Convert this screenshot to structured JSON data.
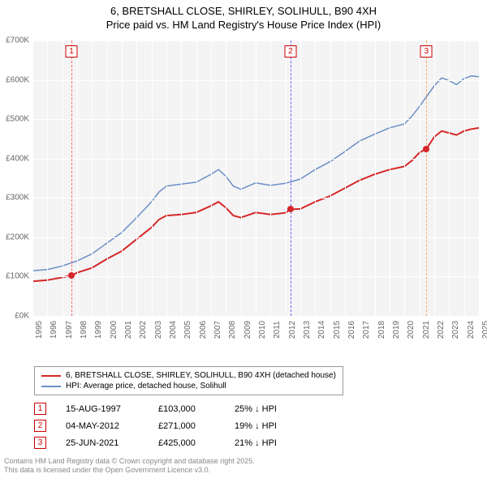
{
  "title_line1": "6, BRETSHALL CLOSE, SHIRLEY, SOLIHULL, B90 4XH",
  "title_line2": "Price paid vs. HM Land Registry's House Price Index (HPI)",
  "chart": {
    "type": "line",
    "background_color": "#f4f4f4",
    "grid_color": "#ffffff",
    "ymin": 0,
    "ymax": 700000,
    "ytick_step": 100000,
    "yticks": [
      "£0K",
      "£100K",
      "£200K",
      "£300K",
      "£400K",
      "£500K",
      "£600K",
      "£700K"
    ],
    "xmin": 1995,
    "xmax": 2025,
    "xticks": [
      1995,
      1996,
      1997,
      1998,
      1999,
      2000,
      2001,
      2002,
      2003,
      2004,
      2005,
      2006,
      2007,
      2008,
      2009,
      2010,
      2011,
      2012,
      2013,
      2014,
      2015,
      2016,
      2017,
      2018,
      2019,
      2020,
      2021,
      2022,
      2023,
      2024,
      2025
    ],
    "series": [
      {
        "name": "price_paid",
        "label": "6, BRETSHALL CLOSE, SHIRLEY, SOLIHULL, B90 4XH (detached house)",
        "color": "#d62728",
        "width": 2,
        "points": [
          [
            1995,
            88000
          ],
          [
            1996,
            91000
          ],
          [
            1997,
            98000
          ],
          [
            1997.62,
            103000
          ],
          [
            1998,
            110000
          ],
          [
            1999,
            122000
          ],
          [
            2000,
            145000
          ],
          [
            2001,
            165000
          ],
          [
            2002,
            195000
          ],
          [
            2003,
            225000
          ],
          [
            2003.5,
            245000
          ],
          [
            2004,
            255000
          ],
          [
            2005,
            258000
          ],
          [
            2006,
            263000
          ],
          [
            2007,
            280000
          ],
          [
            2007.5,
            290000
          ],
          [
            2008,
            275000
          ],
          [
            2008.5,
            255000
          ],
          [
            2009,
            250000
          ],
          [
            2010,
            263000
          ],
          [
            2011,
            258000
          ],
          [
            2012,
            262000
          ],
          [
            2012.34,
            271000
          ],
          [
            2013,
            272000
          ],
          [
            2014,
            290000
          ],
          [
            2015,
            305000
          ],
          [
            2016,
            325000
          ],
          [
            2017,
            345000
          ],
          [
            2018,
            360000
          ],
          [
            2019,
            372000
          ],
          [
            2020,
            380000
          ],
          [
            2020.5,
            395000
          ],
          [
            2021,
            415000
          ],
          [
            2021.48,
            425000
          ],
          [
            2022,
            455000
          ],
          [
            2022.5,
            470000
          ],
          [
            2023,
            465000
          ],
          [
            2023.5,
            460000
          ],
          [
            2024,
            470000
          ],
          [
            2024.5,
            475000
          ],
          [
            2025,
            478000
          ]
        ]
      },
      {
        "name": "hpi",
        "label": "HPI: Average price, detached house, Solihull",
        "color": "#6a8fc7",
        "width": 1.5,
        "points": [
          [
            1995,
            115000
          ],
          [
            1996,
            118000
          ],
          [
            1997,
            127000
          ],
          [
            1998,
            140000
          ],
          [
            1999,
            158000
          ],
          [
            2000,
            185000
          ],
          [
            2001,
            212000
          ],
          [
            2002,
            250000
          ],
          [
            2003,
            290000
          ],
          [
            2003.5,
            315000
          ],
          [
            2004,
            330000
          ],
          [
            2005,
            335000
          ],
          [
            2006,
            340000
          ],
          [
            2007,
            360000
          ],
          [
            2007.5,
            372000
          ],
          [
            2008,
            355000
          ],
          [
            2008.5,
            330000
          ],
          [
            2009,
            322000
          ],
          [
            2010,
            338000
          ],
          [
            2011,
            332000
          ],
          [
            2012,
            337000
          ],
          [
            2013,
            348000
          ],
          [
            2014,
            372000
          ],
          [
            2015,
            392000
          ],
          [
            2016,
            418000
          ],
          [
            2017,
            445000
          ],
          [
            2018,
            462000
          ],
          [
            2019,
            478000
          ],
          [
            2020,
            488000
          ],
          [
            2020.5,
            508000
          ],
          [
            2021,
            532000
          ],
          [
            2022,
            585000
          ],
          [
            2022.5,
            605000
          ],
          [
            2023,
            598000
          ],
          [
            2023.5,
            588000
          ],
          [
            2024,
            603000
          ],
          [
            2024.5,
            610000
          ],
          [
            2025,
            608000
          ]
        ]
      }
    ],
    "markers": [
      {
        "n": "1",
        "x": 1997.62,
        "y": 103000,
        "color": "#ff6666"
      },
      {
        "n": "2",
        "x": 2012.34,
        "y": 271000,
        "color": "#6666ff"
      },
      {
        "n": "3",
        "x": 2021.48,
        "y": 425000,
        "color": "#ffaa66"
      }
    ]
  },
  "legend": {
    "items": [
      {
        "color": "#d62728",
        "label": "6, BRETSHALL CLOSE, SHIRLEY, SOLIHULL, B90 4XH (detached house)"
      },
      {
        "color": "#6a8fc7",
        "label": "HPI: Average price, detached house, Solihull"
      }
    ]
  },
  "annotations": [
    {
      "n": "1",
      "date": "15-AUG-1997",
      "price": "£103,000",
      "diff": "25% ↓ HPI"
    },
    {
      "n": "2",
      "date": "04-MAY-2012",
      "price": "£271,000",
      "diff": "19% ↓ HPI"
    },
    {
      "n": "3",
      "date": "25-JUN-2021",
      "price": "£425,000",
      "diff": "21% ↓ HPI"
    }
  ],
  "footer_line1": "Contains HM Land Registry data © Crown copyright and database right 2025.",
  "footer_line2": "This data is licensed under the Open Government Licence v3.0."
}
